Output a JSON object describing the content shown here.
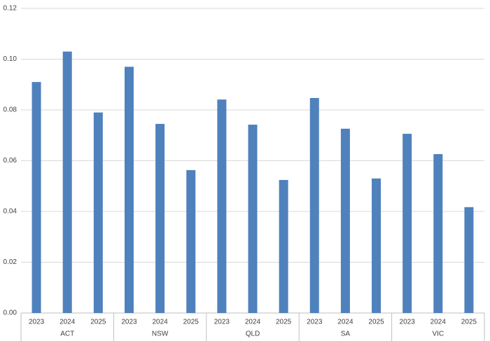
{
  "chart_data": {
    "type": "bar",
    "color": "#4f81bd",
    "grid": true,
    "ylim": [
      0,
      0.12
    ],
    "yticks": [
      {
        "value": 0,
        "label": "0.00"
      },
      {
        "value": 0.02,
        "label": "0.02"
      },
      {
        "value": 0.04,
        "label": "0.04"
      },
      {
        "value": 0.06,
        "label": "0.06"
      },
      {
        "value": 0.08,
        "label": "0.08"
      },
      {
        "value": 0.1,
        "label": "0.10"
      },
      {
        "value": 0.12,
        "label": "0.12"
      }
    ],
    "groups": [
      {
        "label": "ACT",
        "categories": [
          "2023",
          "2024",
          "2025"
        ],
        "values": [
          0.091,
          0.103,
          0.079
        ]
      },
      {
        "label": "NSW",
        "categories": [
          "2023",
          "2024",
          "2025"
        ],
        "values": [
          0.097,
          0.0745,
          0.0563
        ]
      },
      {
        "label": "QLD",
        "categories": [
          "2023",
          "2024",
          "2025"
        ],
        "values": [
          0.0841,
          0.0742,
          0.0524
        ]
      },
      {
        "label": "SA",
        "categories": [
          "2023",
          "2024",
          "2025"
        ],
        "values": [
          0.0847,
          0.0726,
          0.053
        ]
      },
      {
        "label": "VIC",
        "categories": [
          "2023",
          "2024",
          "2025"
        ],
        "values": [
          0.0706,
          0.0626,
          0.0417
        ]
      }
    ]
  }
}
